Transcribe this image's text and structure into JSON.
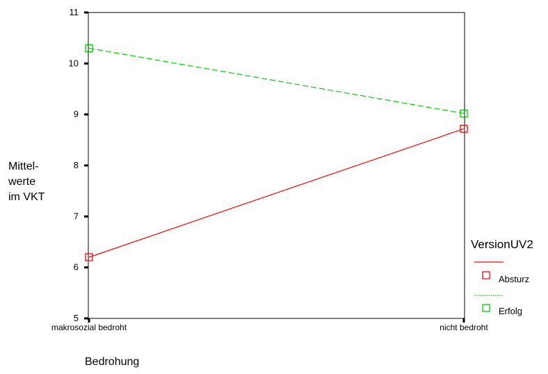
{
  "chart_data": {
    "type": "line",
    "categories": [
      "makrosozial bedroht",
      "nicht bedroht"
    ],
    "series": [
      {
        "name": "Absturz",
        "values": [
          6.2,
          8.72
        ],
        "color": "#ff0000",
        "dash": "solid"
      },
      {
        "name": "Erfolg",
        "values": [
          10.3,
          9.02
        ],
        "color": "#00cc00",
        "dash": "dashed"
      }
    ],
    "ylabel_lines": [
      "Mittel-",
      "werte",
      "im VKT"
    ],
    "xlabel": "Bedrohung",
    "legend_title": "VersionUV2",
    "yticks": [
      5,
      6,
      7,
      8,
      9,
      10,
      11
    ],
    "ylim": [
      5,
      11
    ],
    "grid": false,
    "legend_position": "right"
  }
}
